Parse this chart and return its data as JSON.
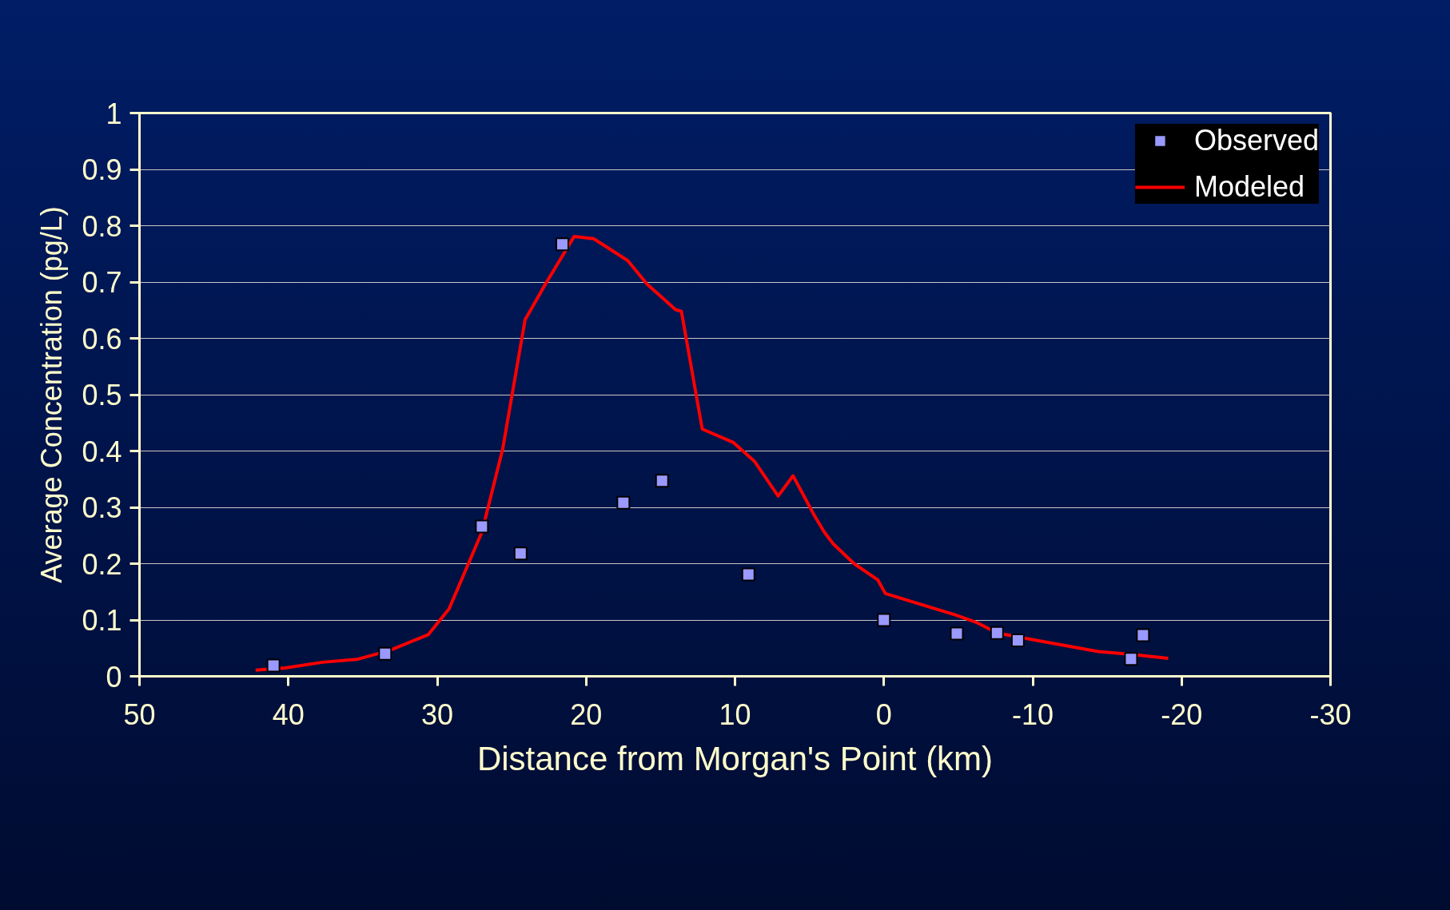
{
  "chart_data": {
    "type": "scatter",
    "xlabel": "Distance from Morgan's Point (km)",
    "ylabel": "Average Concentration (pg/L)",
    "xlim": [
      50,
      -30
    ],
    "xticks": [
      50,
      40,
      30,
      20,
      10,
      0,
      -10,
      -20,
      -30
    ],
    "ylim": [
      0,
      1
    ],
    "yticks": [
      0,
      0.1,
      0.2,
      0.3,
      0.4,
      0.5,
      0.6,
      0.7,
      0.8,
      0.9,
      1
    ],
    "grid": "y",
    "legend": "top right",
    "series": [
      {
        "name": "Observed",
        "marker": "square",
        "color": "#9999ff",
        "x": [
          41.0,
          33.5,
          27.0,
          24.4,
          21.6,
          17.5,
          14.9,
          9.1,
          0.0,
          -4.9,
          -7.6,
          -9.0,
          -16.6,
          -17.4
        ],
        "values": [
          0.019,
          0.04,
          0.266,
          0.218,
          0.767,
          0.308,
          0.347,
          0.181,
          0.1,
          0.076,
          0.077,
          0.064,
          0.031,
          0.073
        ]
      },
      {
        "name": "Modeled",
        "type": "line",
        "line_style": "solid",
        "color": "#ff0000",
        "x": [
          42.2,
          40.2,
          37.7,
          35.4,
          33.2,
          30.6,
          29.2,
          27.0,
          25.6,
          24.1,
          22.7,
          20.8,
          19.5,
          17.2,
          15.9,
          14.5,
          14.0,
          13.6,
          12.2,
          10.1,
          8.7,
          7.1,
          6.1,
          4.7,
          4.0,
          3.4,
          2.0,
          0.4,
          -0.1,
          -4.8,
          -6.2,
          -7.6,
          -10.4,
          -14.4,
          -16.6,
          -19.1
        ],
        "values": [
          0.011,
          0.015,
          0.025,
          0.03,
          0.046,
          0.074,
          0.12,
          0.256,
          0.404,
          0.633,
          0.698,
          0.781,
          0.777,
          0.738,
          0.696,
          0.663,
          0.651,
          0.648,
          0.439,
          0.415,
          0.382,
          0.32,
          0.356,
          0.287,
          0.256,
          0.235,
          0.2,
          0.171,
          0.147,
          0.109,
          0.096,
          0.077,
          0.063,
          0.044,
          0.039,
          0.032
        ]
      }
    ]
  }
}
